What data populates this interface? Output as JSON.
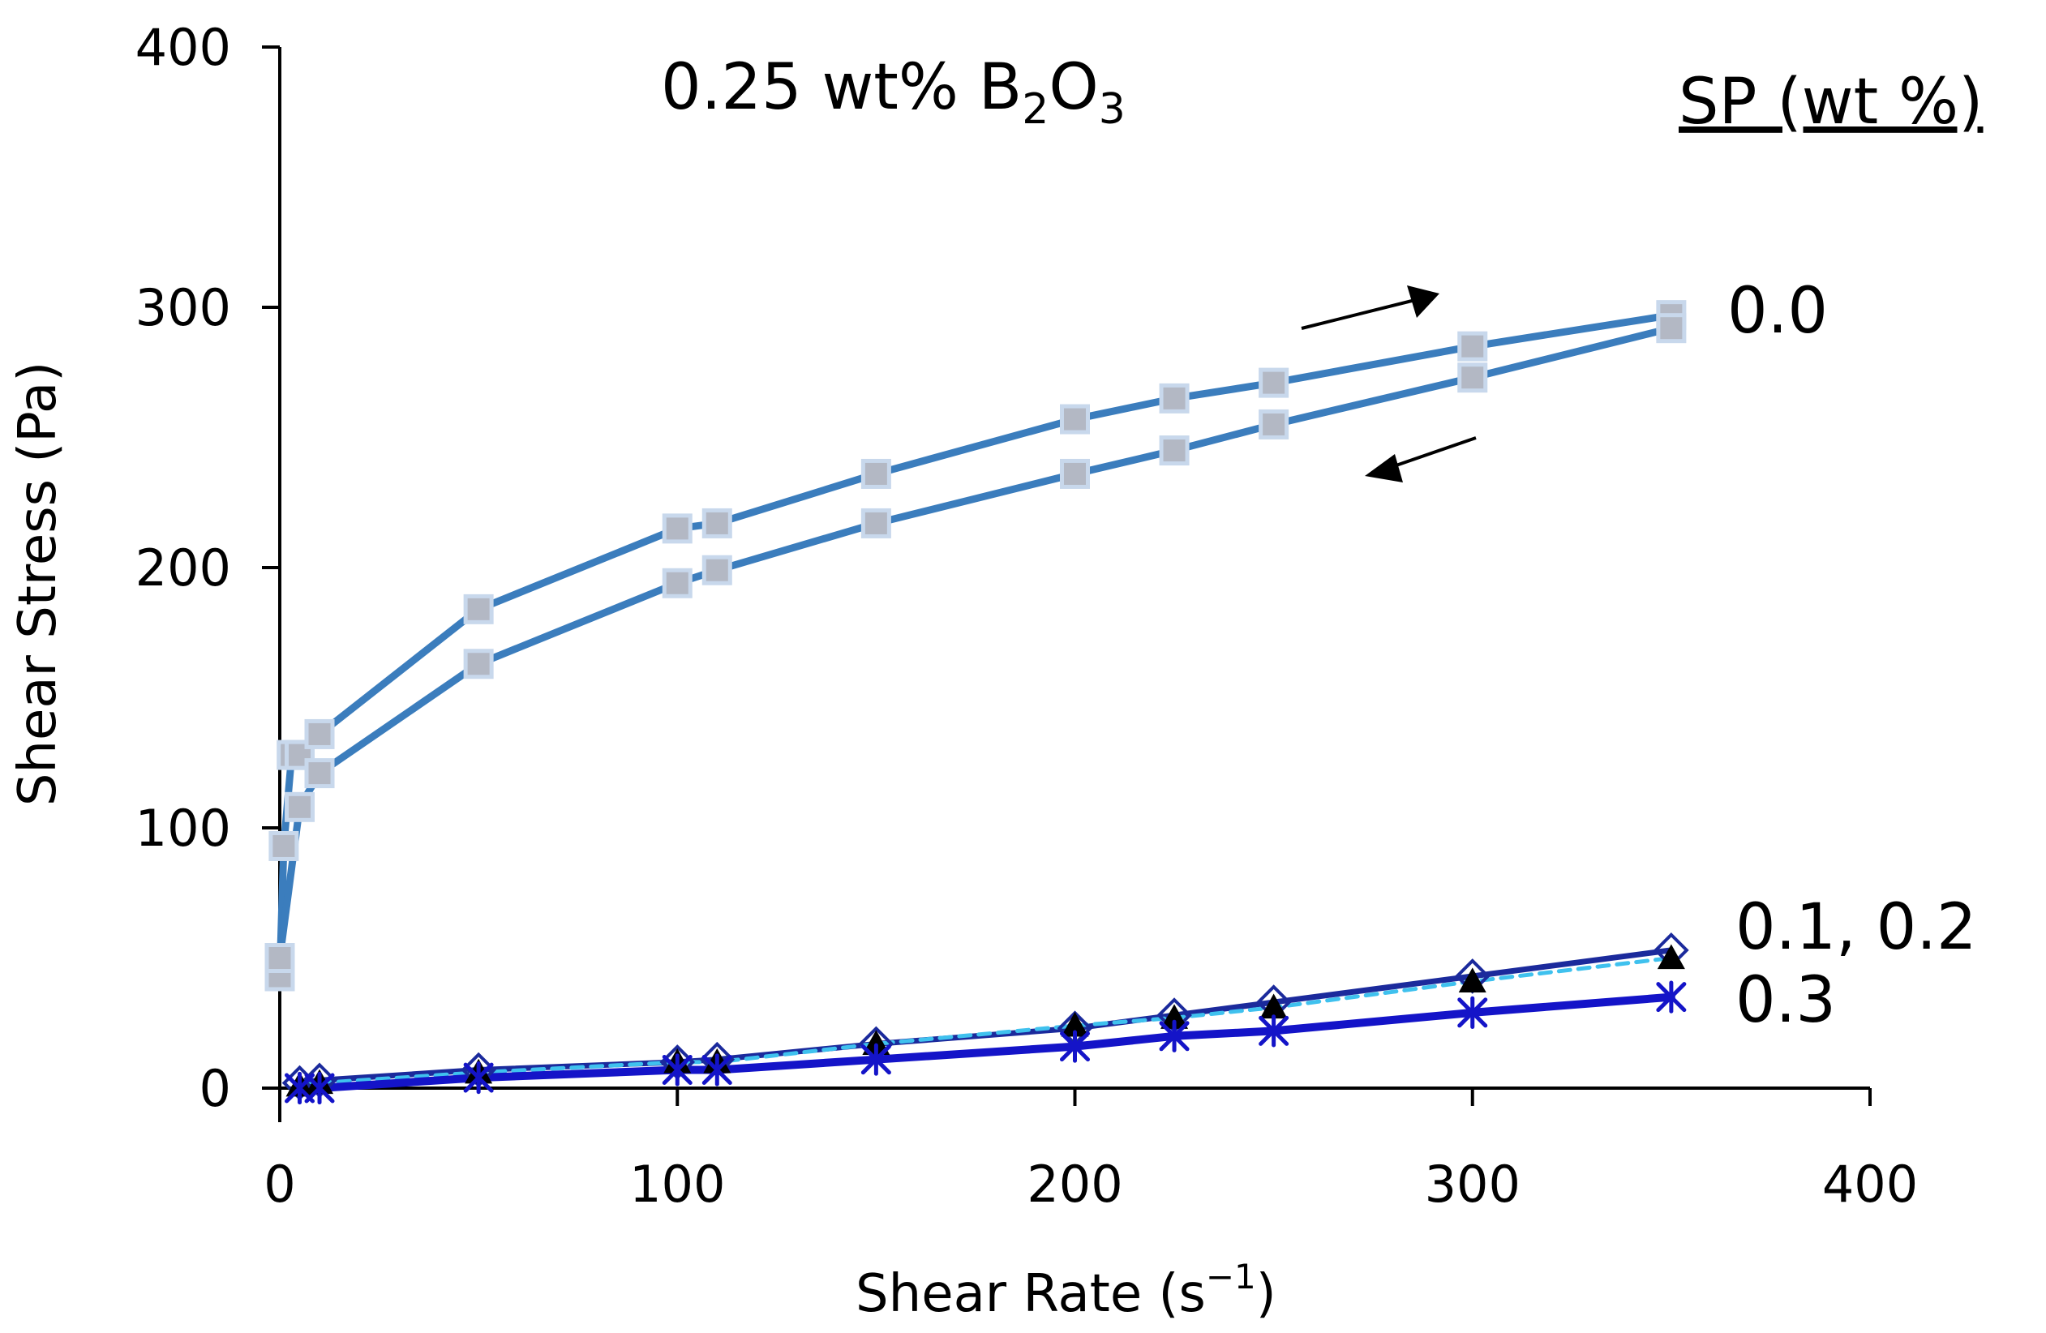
{
  "chart_data": {
    "type": "line",
    "title_parts": {
      "pre": "0.25 wt% B",
      "sub1": "2",
      "mid": "O",
      "sub2": "3"
    },
    "xlabel_parts": {
      "pre": "Shear Rate (s",
      "sup": "−1",
      "post": ")"
    },
    "ylabel": "Shear Stress (Pa)",
    "legend_title": "SP (wt %)",
    "xlim": [
      0,
      400
    ],
    "ylim": [
      0,
      400
    ],
    "x_ticks": [
      "0",
      "100",
      "200",
      "300",
      "400"
    ],
    "y_ticks": [
      "0",
      "100",
      "200",
      "300",
      "400"
    ],
    "grid": false,
    "colors": {
      "sp0_line": "#3b7dbd",
      "sp0_marker_fill": "#b3b8c4",
      "sp0_marker_edge": "#c8d8ec",
      "sp01_line": "#1b2a9c",
      "sp02_line": "#3fc1ee",
      "sp02_marker": "#000000",
      "sp03_line": "#1414c8",
      "arrow": "#000000"
    },
    "series": [
      {
        "label": "0.0",
        "direction": "up",
        "x": [
          0,
          1,
          3,
          5,
          10,
          50,
          100,
          110,
          150,
          200,
          225,
          250,
          300,
          350
        ],
        "y": [
          43,
          93,
          128,
          128,
          136,
          184,
          215,
          217,
          236,
          257,
          265,
          271,
          285,
          297
        ]
      },
      {
        "label": "0.0",
        "direction": "down",
        "x": [
          350,
          300,
          250,
          225,
          200,
          150,
          110,
          100,
          50,
          10,
          5,
          0
        ],
        "y": [
          292,
          273,
          255,
          245,
          236,
          217,
          199,
          194,
          163,
          121,
          108,
          50
        ]
      },
      {
        "label": "0.1",
        "x": [
          5,
          10,
          50,
          100,
          110,
          150,
          200,
          225,
          250,
          300,
          350
        ],
        "y": [
          2,
          3,
          7,
          10,
          11,
          17,
          23,
          28,
          33,
          43,
          53
        ]
      },
      {
        "label": "0.2",
        "x": [
          5,
          10,
          50,
          100,
          110,
          150,
          200,
          225,
          250,
          300,
          350
        ],
        "y": [
          1,
          2,
          6,
          10,
          10,
          17,
          24,
          27,
          31,
          41,
          50
        ]
      },
      {
        "label": "0.3",
        "x": [
          5,
          10,
          50,
          100,
          110,
          150,
          200,
          225,
          250,
          300,
          350
        ],
        "y": [
          0,
          0,
          4,
          7,
          7,
          11,
          16,
          20,
          22,
          29,
          35
        ]
      }
    ],
    "series_labels": [
      "0.0",
      "0.1, 0.2",
      "0.3"
    ]
  }
}
